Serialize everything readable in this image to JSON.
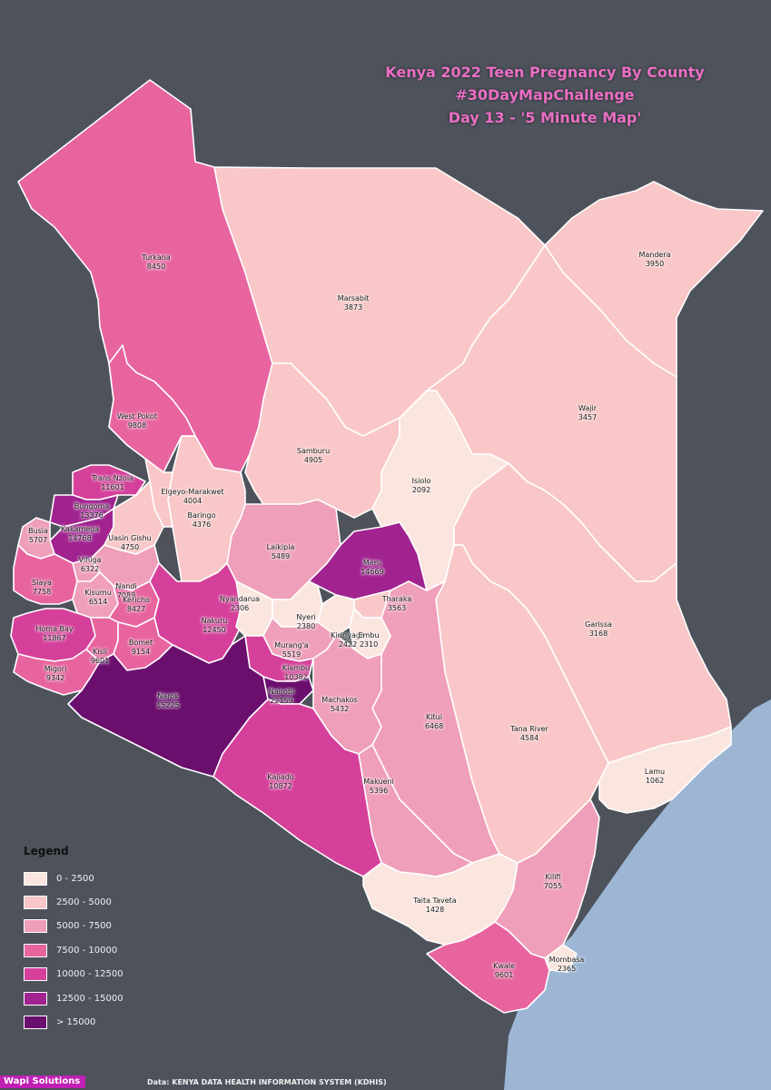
{
  "title": {
    "line1": "Kenya 2022 Teen Pregnancy By County",
    "line2": "#30DayMapChallenge",
    "line3": "Day 13 - '5 Minute Map'"
  },
  "counties": [
    {
      "name": "Turkana",
      "value": "8450",
      "color": "#e8649f"
    },
    {
      "name": "Marsabit",
      "value": "3873",
      "color": "#f9c7c7"
    },
    {
      "name": "Mandera",
      "value": "3950",
      "color": "#f9c7c7"
    },
    {
      "name": "Wajir",
      "value": "3457",
      "color": "#f9c7c7"
    },
    {
      "name": "West Pokot",
      "value": "9808",
      "color": "#e8649f"
    },
    {
      "name": "Samburu",
      "value": "4905",
      "color": "#f9c7c7"
    },
    {
      "name": "Isiolo",
      "value": "2092",
      "color": "#fbe6df"
    },
    {
      "name": "Trans Nzoia",
      "value": "11601",
      "color": "#d5409a"
    },
    {
      "name": "Elgeyo-Marakwet",
      "value": "4004",
      "color": "#f9c7c7"
    },
    {
      "name": "Baringo",
      "value": "4376",
      "color": "#f9c7c7"
    },
    {
      "name": "Bungoma",
      "value": "13376",
      "color": "#a1238f"
    },
    {
      "name": "Kakamega",
      "value": "14768",
      "color": "#a1238f"
    },
    {
      "name": "Busia",
      "value": "5707",
      "color": "#ef9fba"
    },
    {
      "name": "Uasin Gishu",
      "value": "4750",
      "color": "#f9c7c7"
    },
    {
      "name": "Laikipia",
      "value": "5489",
      "color": "#ef9fba"
    },
    {
      "name": "Meru",
      "value": "14669",
      "color": "#a1238f"
    },
    {
      "name": "Vihiga",
      "value": "6322",
      "color": "#ef9fba"
    },
    {
      "name": "Nandi",
      "value": "7089",
      "color": "#ef9fba"
    },
    {
      "name": "Siaya",
      "value": "7758",
      "color": "#e8649f"
    },
    {
      "name": "Kisumu",
      "value": "6514",
      "color": "#ef9fba"
    },
    {
      "name": "Kericho",
      "value": "8427",
      "color": "#e8649f"
    },
    {
      "name": "Nyandarua",
      "value": "2306",
      "color": "#fbe6df"
    },
    {
      "name": "Tharaka",
      "value": "3563",
      "color": "#f9c7c7"
    },
    {
      "name": "Nyeri",
      "value": "2380",
      "color": "#fbe6df"
    },
    {
      "name": "Garissa",
      "value": "3168",
      "color": "#f9c7c7"
    },
    {
      "name": "Homa Bay",
      "value": "11867",
      "color": "#d5409a"
    },
    {
      "name": "Nakuru",
      "value": "12450",
      "color": "#d5409a"
    },
    {
      "name": "Kirinyaga",
      "value": "2422",
      "color": "#fbe6df"
    },
    {
      "name": "Embu",
      "value": "2310",
      "color": "#fbe6df"
    },
    {
      "name": "Kisii",
      "value": "9601",
      "color": "#e8649f"
    },
    {
      "name": "Bomet",
      "value": "9154",
      "color": "#e8649f"
    },
    {
      "name": "Murang'a",
      "value": "5519",
      "color": "#ef9fba"
    },
    {
      "name": "Migori",
      "value": "9342",
      "color": "#e8649f"
    },
    {
      "name": "Kiambu",
      "value": "10382",
      "color": "#d5409a"
    },
    {
      "name": "Nairobi",
      "value": "22159",
      "color": "#6b0f6e"
    },
    {
      "name": "Narok",
      "value": "15225",
      "color": "#6b0f6e"
    },
    {
      "name": "Machakos",
      "value": "5432",
      "color": "#ef9fba"
    },
    {
      "name": "Kitui",
      "value": "6468",
      "color": "#ef9fba"
    },
    {
      "name": "Tana River",
      "value": "4584",
      "color": "#f9c7c7"
    },
    {
      "name": "Lamu",
      "value": "1062",
      "color": "#fbe6df"
    },
    {
      "name": "Kajiado",
      "value": "10872",
      "color": "#d5409a"
    },
    {
      "name": "Makueni",
      "value": "5396",
      "color": "#ef9fba"
    },
    {
      "name": "Kilifi",
      "value": "7055",
      "color": "#ef9fba"
    },
    {
      "name": "Taita Taveta",
      "value": "1428",
      "color": "#fbe6df"
    },
    {
      "name": "Kwale",
      "value": "9601",
      "color": "#e8649f"
    },
    {
      "name": "Mombasa",
      "value": "2365",
      "color": "#fbe6df"
    }
  ],
  "legend": {
    "title": "Legend",
    "items": [
      {
        "label": "0 - 2500",
        "color": "#fbe6df"
      },
      {
        "label": "2500 - 5000",
        "color": "#f9c7c7"
      },
      {
        "label": "5000 - 7500",
        "color": "#ef9fba"
      },
      {
        "label": "7500 - 10000",
        "color": "#e8649f"
      },
      {
        "label": "10000 - 12500",
        "color": "#d5409a"
      },
      {
        "label": "12500 - 15000",
        "color": "#a1238f"
      },
      {
        "label": "> 15000",
        "color": "#6b0f6e"
      }
    ]
  },
  "footer": {
    "brand": "Wapi Solutions",
    "source": "Data: KENYA DATA HEALTH INFORMATION SYSTEM (KDHIS)"
  },
  "colors": {
    "background": "#4d525b",
    "ocean": "#9cb6d4",
    "title": "#ea6fc4",
    "border": "#ffffff"
  }
}
